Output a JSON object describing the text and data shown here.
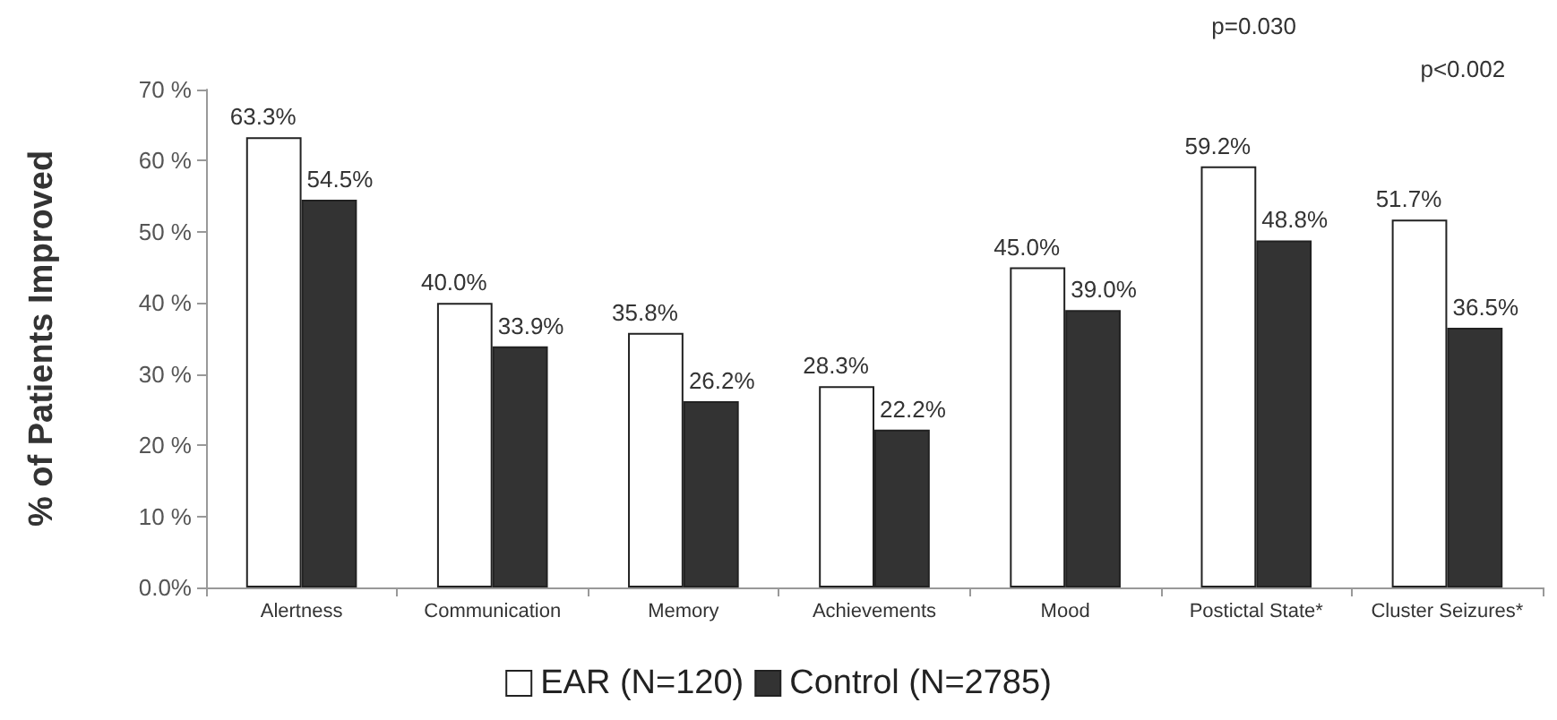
{
  "chart_data": {
    "type": "bar",
    "ylabel": "% of Patients Improved",
    "categories": [
      "Alertness",
      "Communication",
      "Memory",
      "Achievements",
      "Mood",
      "Postictal State*",
      "Cluster Seizures*"
    ],
    "series": [
      {
        "name": "EAR (N=120)",
        "color": "#ffffff",
        "values": [
          63.3,
          40.0,
          35.8,
          28.3,
          45.0,
          59.2,
          51.7
        ],
        "value_labels": [
          "63.3%",
          "40.0%",
          "35.8%",
          "28.3%",
          "45.0%",
          "59.2%",
          "51.7%"
        ]
      },
      {
        "name": "Control (N=2785)",
        "color": "#333333",
        "values": [
          54.5,
          33.9,
          26.2,
          22.2,
          39.0,
          48.8,
          36.5
        ],
        "value_labels": [
          "54.5%",
          "33.9%",
          "26.2%",
          "22.2%",
          "39.0%",
          "48.8%",
          "36.5%"
        ]
      }
    ],
    "ylim": [
      0,
      70
    ],
    "yticks": [
      {
        "value": 0,
        "label": "0.0%"
      },
      {
        "value": 10,
        "label": "10 %"
      },
      {
        "value": 20,
        "label": "20 %"
      },
      {
        "value": 30,
        "label": "30 %"
      },
      {
        "value": 40,
        "label": "40 %"
      },
      {
        "value": 50,
        "label": "50 %"
      },
      {
        "value": 60,
        "label": "60 %"
      },
      {
        "value": 70,
        "label": "70 %"
      }
    ],
    "annotations": [
      "p=0.030",
      "p<0.002"
    ],
    "grid": false,
    "legend": "bottom"
  }
}
